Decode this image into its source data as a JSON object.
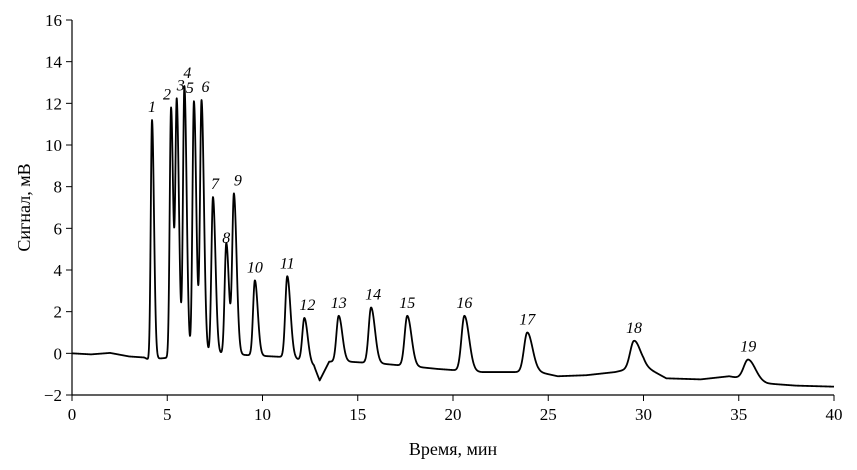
{
  "chart_data": {
    "type": "line",
    "title": "",
    "xlabel": "Время, мин",
    "ylabel": "Сигнал, мВ",
    "xlim": [
      0,
      40
    ],
    "ylim": [
      -2,
      16
    ],
    "x_ticks": [
      0,
      5,
      10,
      15,
      20,
      25,
      30,
      35,
      40
    ],
    "y_ticks": [
      -2,
      0,
      2,
      4,
      6,
      8,
      10,
      12,
      14,
      16
    ],
    "grid": false,
    "legend": "none",
    "line_color": "#000000",
    "baseline": [
      [
        0,
        0
      ],
      [
        1,
        -0.05
      ],
      [
        2,
        0.02
      ],
      [
        3,
        -0.15
      ],
      [
        3.8,
        -0.2
      ],
      [
        4.0,
        -0.3
      ],
      [
        7.5,
        0
      ],
      [
        9.5,
        -0.1
      ],
      [
        11.6,
        -0.2
      ],
      [
        12.7,
        -0.6
      ],
      [
        13.0,
        -1.3
      ],
      [
        13.5,
        -0.4
      ],
      [
        14.5,
        -0.4
      ],
      [
        16.3,
        -0.5
      ],
      [
        18.1,
        -0.65
      ],
      [
        19.2,
        -0.75
      ],
      [
        21.5,
        -0.9
      ],
      [
        24.5,
        -0.9
      ],
      [
        25.5,
        -1.1
      ],
      [
        27.0,
        -1.05
      ],
      [
        28.5,
        -0.9
      ],
      [
        30.0,
        -0.6
      ],
      [
        31.2,
        -1.2
      ],
      [
        33.0,
        -1.25
      ],
      [
        34.5,
        -1.1
      ],
      [
        36.5,
        -1.45
      ],
      [
        38.0,
        -1.55
      ],
      [
        40.0,
        -1.6
      ]
    ],
    "peaks": [
      {
        "label": "1",
        "time": 4.2,
        "height": 11.2
      },
      {
        "label": "2",
        "time": 5.2,
        "height": 11.8
      },
      {
        "label": "3",
        "time": 5.5,
        "height": 11.9
      },
      {
        "label": "4",
        "time": 5.9,
        "height": 12.8
      },
      {
        "label": "5",
        "time": 6.4,
        "height": 12.1
      },
      {
        "label": "6",
        "time": 6.8,
        "height": 12.1
      },
      {
        "label": "7",
        "time": 7.4,
        "height": 7.5
      },
      {
        "label": "8",
        "time": 8.1,
        "height": 5.3
      },
      {
        "label": "9",
        "time": 8.5,
        "height": 7.6
      },
      {
        "label": "10",
        "time": 9.6,
        "height": 3.5
      },
      {
        "label": "11",
        "time": 11.3,
        "height": 3.7
      },
      {
        "label": "12",
        "time": 12.2,
        "height": 1.7
      },
      {
        "label": "13",
        "time": 14.0,
        "height": 1.8
      },
      {
        "label": "14",
        "time": 15.7,
        "height": 2.2
      },
      {
        "label": "15",
        "time": 17.6,
        "height": 1.8
      },
      {
        "label": "16",
        "time": 20.6,
        "height": 1.8
      },
      {
        "label": "17",
        "time": 23.9,
        "height": 1.0
      },
      {
        "label": "18",
        "time": 29.5,
        "height": 0.6
      },
      {
        "label": "19",
        "time": 35.5,
        "height": -0.3
      }
    ]
  }
}
